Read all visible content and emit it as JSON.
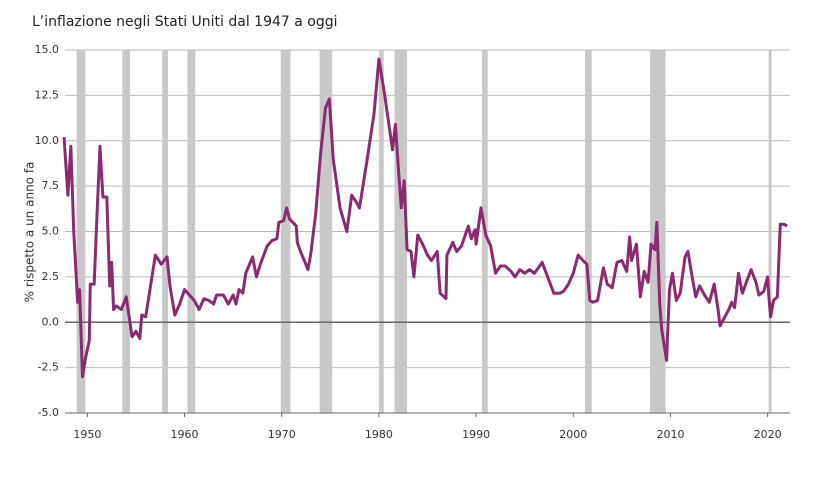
{
  "chart_data": {
    "type": "line",
    "title": "L’inflazione negli Stati Uniti dal 1947 a oggi",
    "y_label": "% rispetto a un anno fa",
    "xlim": [
      1947.7,
      2022.3
    ],
    "xticks": [
      1950,
      1960,
      1970,
      1980,
      1990,
      2000,
      2010,
      2020
    ],
    "ylim": [
      -5,
      15
    ],
    "yticks": [
      {
        "value": 15,
        "label": "15.0"
      },
      {
        "value": 12.5,
        "label": "12.5"
      },
      {
        "value": 10,
        "label": "10.0"
      },
      {
        "value": 7.5,
        "label": "7.5"
      },
      {
        "value": 5,
        "label": "5.0"
      },
      {
        "value": 2.5,
        "label": "2.5"
      },
      {
        "value": 0,
        "label": "0.0"
      },
      {
        "value": -2.5,
        "label": "-2.5"
      },
      {
        "value": -5,
        "label": "-5.0"
      }
    ],
    "grid": true,
    "shaded_periods": [
      [
        1948.9,
        1949.8
      ],
      [
        1953.6,
        1954.4
      ],
      [
        1957.7,
        1958.3
      ],
      [
        1960.3,
        1961.1
      ],
      [
        1969.9,
        1970.9
      ],
      [
        1973.9,
        1975.2
      ],
      [
        1980.0,
        1980.5
      ],
      [
        1981.6,
        1982.9
      ],
      [
        1990.6,
        1991.2
      ],
      [
        2001.2,
        2001.9
      ],
      [
        2007.9,
        2009.5
      ],
      [
        2020.1,
        2020.4
      ]
    ],
    "shade_color": "#c8c8c8",
    "series": [
      {
        "color": "#8b2a6e",
        "x": [
          1947.6,
          1948.0,
          1948.3,
          1948.6,
          1949.0,
          1949.2,
          1949.5,
          1949.8,
          1950.2,
          1950.3,
          1950.7,
          1951.0,
          1951.3,
          1951.6,
          1952.0,
          1952.3,
          1952.5,
          1952.7,
          1953.0,
          1953.5,
          1954.0,
          1954.3,
          1954.6,
          1955.0,
          1955.4,
          1955.6,
          1956.0,
          1956.5,
          1957.0,
          1957.6,
          1958.2,
          1958.5,
          1959.0,
          1959.5,
          1960.0,
          1960.5,
          1961.0,
          1961.5,
          1962.0,
          1962.5,
          1963.0,
          1963.3,
          1964.0,
          1964.5,
          1965.0,
          1965.3,
          1965.6,
          1966.0,
          1966.3,
          1967.0,
          1967.4,
          1967.8,
          1968.5,
          1969.0,
          1969.5,
          1969.7,
          1970.2,
          1970.5,
          1970.8,
          1971.5,
          1971.6,
          1972.0,
          1972.4,
          1972.7,
          1973.0,
          1973.5,
          1974.0,
          1974.5,
          1974.9,
          1975.3,
          1976.0,
          1976.7,
          1977.2,
          1977.7,
          1978.0,
          1978.8,
          1979.5,
          1980.0,
          1980.6,
          1981.0,
          1981.4,
          1981.7,
          1982.0,
          1982.3,
          1982.6,
          1982.9,
          1983.3,
          1983.6,
          1984.0,
          1984.5,
          1985.0,
          1985.4,
          1986.0,
          1986.3,
          1986.9,
          1987.0,
          1987.6,
          1988.0,
          1988.5,
          1989.2,
          1989.5,
          1989.9,
          1990.0,
          1990.5,
          1991.0,
          1991.5,
          1992.0,
          1992.5,
          1993.0,
          1993.6,
          1994.0,
          1994.5,
          1995.0,
          1995.5,
          1996.0,
          1996.8,
          1997.5,
          1998.0,
          1998.6,
          1999.0,
          1999.5,
          2000.0,
          2000.5,
          2001.0,
          2001.4,
          2001.7,
          2002.0,
          2002.5,
          2002.9,
          2003.1,
          2003.5,
          2004.0,
          2004.5,
          2005.0,
          2005.5,
          2005.8,
          2006.0,
          2006.5,
          2006.9,
          2007.3,
          2007.7,
          2008.0,
          2008.4,
          2008.6,
          2008.9,
          2009.1,
          2009.6,
          2009.9,
          2010.2,
          2010.6,
          2011.0,
          2011.5,
          2011.8,
          2012.2,
          2012.6,
          2013.0,
          2013.5,
          2014.0,
          2014.5,
          2014.9,
          2015.1,
          2015.5,
          2016.0,
          2016.3,
          2016.6,
          2017.0,
          2017.4,
          2017.8,
          2018.3,
          2018.8,
          2019.1,
          2019.6,
          2020.0,
          2020.1,
          2020.3,
          2020.6,
          2021.0,
          2021.3,
          2021.7,
          2022.0
        ],
        "values": [
          10.2,
          7.0,
          9.7,
          5.0,
          1.1,
          1.8,
          -3.0,
          -2.0,
          -1.0,
          2.1,
          2.1,
          6.0,
          9.7,
          6.9,
          6.9,
          2.0,
          3.3,
          0.7,
          0.9,
          0.7,
          1.4,
          0.3,
          -0.8,
          -0.5,
          -0.9,
          0.4,
          0.3,
          2.0,
          3.7,
          3.2,
          3.6,
          2.0,
          0.4,
          1.0,
          1.8,
          1.5,
          1.2,
          0.7,
          1.3,
          1.2,
          1.0,
          1.5,
          1.5,
          1.0,
          1.5,
          1.0,
          1.8,
          1.6,
          2.7,
          3.6,
          2.5,
          3.2,
          4.2,
          4.5,
          4.6,
          5.5,
          5.6,
          6.3,
          5.7,
          5.3,
          4.4,
          3.8,
          3.3,
          2.9,
          3.8,
          6.0,
          9.3,
          11.8,
          12.3,
          9.0,
          6.3,
          5.0,
          7.0,
          6.6,
          6.3,
          9.0,
          11.5,
          14.5,
          12.5,
          11.0,
          9.5,
          10.9,
          8.5,
          6.3,
          7.8,
          4.0,
          3.9,
          2.5,
          4.8,
          4.3,
          3.7,
          3.4,
          3.9,
          1.6,
          1.3,
          3.7,
          4.4,
          3.9,
          4.2,
          5.3,
          4.6,
          5.1,
          4.3,
          6.3,
          4.8,
          4.2,
          2.7,
          3.1,
          3.1,
          2.8,
          2.5,
          2.9,
          2.7,
          2.9,
          2.7,
          3.3,
          2.3,
          1.6,
          1.6,
          1.7,
          2.1,
          2.7,
          3.7,
          3.4,
          3.2,
          1.2,
          1.1,
          1.2,
          2.4,
          3.0,
          2.1,
          1.9,
          3.3,
          3.4,
          2.8,
          4.7,
          3.4,
          4.3,
          1.4,
          2.8,
          2.2,
          4.3,
          4.0,
          5.5,
          1.0,
          -0.4,
          -2.1,
          1.8,
          2.7,
          1.2,
          1.6,
          3.6,
          3.9,
          2.6,
          1.4,
          2.0,
          1.5,
          1.1,
          2.1,
          0.7,
          -0.2,
          0.2,
          0.7,
          1.1,
          0.8,
          2.7,
          1.6,
          2.2,
          2.9,
          2.2,
          1.5,
          1.7,
          2.5,
          1.6,
          0.3,
          1.2,
          1.4,
          5.4,
          5.4,
          5.3
        ]
      }
    ]
  }
}
